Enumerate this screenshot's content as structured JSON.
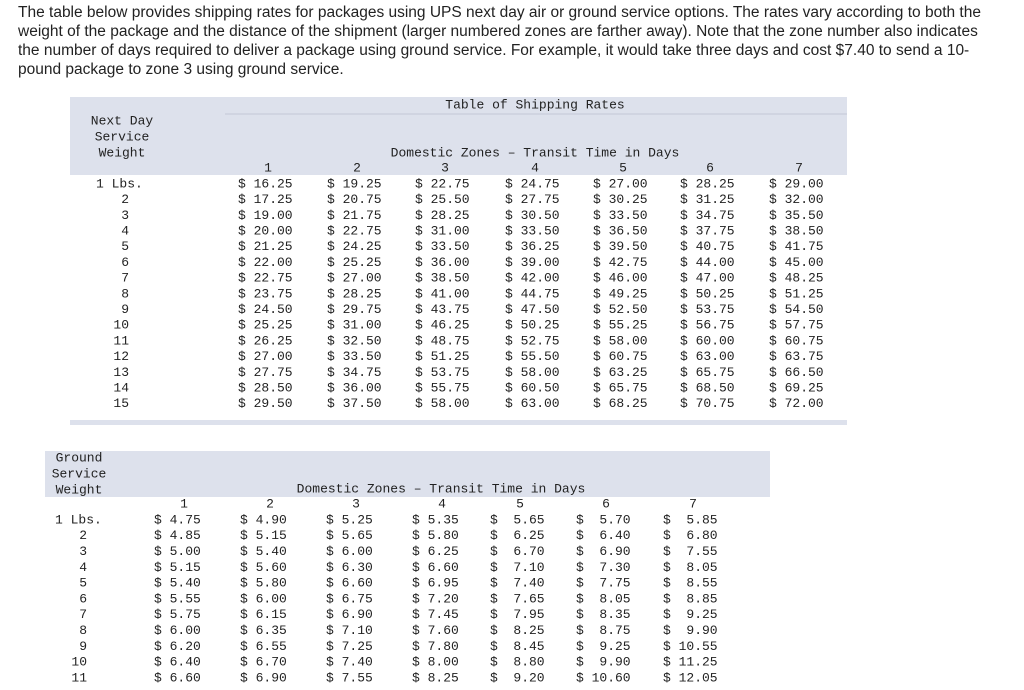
{
  "intro": "The table below provides shipping rates for packages using UPS next day air or ground service options. The rates vary according to both the weight of the package and the distance of the shipment (larger numbered zones are farther away). Note that the zone number also indicates the number of days required to deliver a package using ground service. For example, it would take three days and cost $7.40 to send a 10-pound package to zone 3 using ground service.",
  "next_day": {
    "title": "Table of Shipping Rates",
    "weight_header": [
      "Next Day",
      "Service",
      "Weight"
    ],
    "zones_header": "Domestic Zones – Transit Time in Days",
    "zones": [
      "1",
      "2",
      "3",
      "4",
      "5",
      "6",
      "7"
    ],
    "rows": [
      [
        "1 Lbs.",
        "$ 16.25",
        "$ 19.25",
        "$ 22.75",
        "$ 24.75",
        "$ 27.00",
        "$ 28.25",
        "$ 29.00"
      ],
      [
        "2",
        "$ 17.25",
        "$ 20.75",
        "$ 25.50",
        "$ 27.75",
        "$ 30.25",
        "$ 31.25",
        "$ 32.00"
      ],
      [
        "3",
        "$ 19.00",
        "$ 21.75",
        "$ 28.25",
        "$ 30.50",
        "$ 33.50",
        "$ 34.75",
        "$ 35.50"
      ],
      [
        "4",
        "$ 20.00",
        "$ 22.75",
        "$ 31.00",
        "$ 33.50",
        "$ 36.50",
        "$ 37.75",
        "$ 38.50"
      ],
      [
        "5",
        "$ 21.25",
        "$ 24.25",
        "$ 33.50",
        "$ 36.25",
        "$ 39.50",
        "$ 40.75",
        "$ 41.75"
      ],
      [
        "6",
        "$ 22.00",
        "$ 25.25",
        "$ 36.00",
        "$ 39.00",
        "$ 42.75",
        "$ 44.00",
        "$ 45.00"
      ],
      [
        "7",
        "$ 22.75",
        "$ 27.00",
        "$ 38.50",
        "$ 42.00",
        "$ 46.00",
        "$ 47.00",
        "$ 48.25"
      ],
      [
        "8",
        "$ 23.75",
        "$ 28.25",
        "$ 41.00",
        "$ 44.75",
        "$ 49.25",
        "$ 50.25",
        "$ 51.25"
      ],
      [
        "9",
        "$ 24.50",
        "$ 29.75",
        "$ 43.75",
        "$ 47.50",
        "$ 52.50",
        "$ 53.75",
        "$ 54.50"
      ],
      [
        "10",
        "$ 25.25",
        "$ 31.00",
        "$ 46.25",
        "$ 50.25",
        "$ 55.25",
        "$ 56.75",
        "$ 57.75"
      ],
      [
        "11",
        "$ 26.25",
        "$ 32.50",
        "$ 48.75",
        "$ 52.75",
        "$ 58.00",
        "$ 60.00",
        "$ 60.75"
      ],
      [
        "12",
        "$ 27.00",
        "$ 33.50",
        "$ 51.25",
        "$ 55.50",
        "$ 60.75",
        "$ 63.00",
        "$ 63.75"
      ],
      [
        "13",
        "$ 27.75",
        "$ 34.75",
        "$ 53.75",
        "$ 58.00",
        "$ 63.25",
        "$ 65.75",
        "$ 66.50"
      ],
      [
        "14",
        "$ 28.50",
        "$ 36.00",
        "$ 55.75",
        "$ 60.50",
        "$ 65.75",
        "$ 68.50",
        "$ 69.25"
      ],
      [
        "15",
        "$ 29.50",
        "$ 37.50",
        "$ 58.00",
        "$ 63.00",
        "$ 68.25",
        "$ 70.75",
        "$ 72.00"
      ]
    ]
  },
  "ground": {
    "weight_header": [
      "Ground",
      "Service",
      "Weight"
    ],
    "zones_header": "Domestic Zones – Transit Time in Days",
    "zones": [
      "1",
      "2",
      "3",
      "4",
      "5",
      "6",
      "7"
    ],
    "rows": [
      [
        "1 Lbs.",
        "$ 4.75",
        "$ 4.90",
        "$ 5.25",
        "$ 5.35",
        "$  5.65",
        "$  5.70",
        "$  5.85"
      ],
      [
        "2",
        "$ 4.85",
        "$ 5.15",
        "$ 5.65",
        "$ 5.80",
        "$  6.25",
        "$  6.40",
        "$  6.80"
      ],
      [
        "3",
        "$ 5.00",
        "$ 5.40",
        "$ 6.00",
        "$ 6.25",
        "$  6.70",
        "$  6.90",
        "$  7.55"
      ],
      [
        "4",
        "$ 5.15",
        "$ 5.60",
        "$ 6.30",
        "$ 6.60",
        "$  7.10",
        "$  7.30",
        "$  8.05"
      ],
      [
        "5",
        "$ 5.40",
        "$ 5.80",
        "$ 6.60",
        "$ 6.95",
        "$  7.40",
        "$  7.75",
        "$  8.55"
      ],
      [
        "6",
        "$ 5.55",
        "$ 6.00",
        "$ 6.75",
        "$ 7.20",
        "$  7.65",
        "$  8.05",
        "$  8.85"
      ],
      [
        "7",
        "$ 5.75",
        "$ 6.15",
        "$ 6.90",
        "$ 7.45",
        "$  7.95",
        "$  8.35",
        "$  9.25"
      ],
      [
        "8",
        "$ 6.00",
        "$ 6.35",
        "$ 7.10",
        "$ 7.60",
        "$  8.25",
        "$  8.75",
        "$  9.90"
      ],
      [
        "9",
        "$ 6.20",
        "$ 6.55",
        "$ 7.25",
        "$ 7.80",
        "$  8.45",
        "$  9.25",
        "$ 10.55"
      ],
      [
        "10",
        "$ 6.40",
        "$ 6.70",
        "$ 7.40",
        "$ 8.00",
        "$  8.80",
        "$  9.90",
        "$ 11.25"
      ],
      [
        "11",
        "$ 6.60",
        "$ 6.90",
        "$ 7.55",
        "$ 8.25",
        "$  9.20",
        "$ 10.60",
        "$ 12.05"
      ]
    ]
  }
}
